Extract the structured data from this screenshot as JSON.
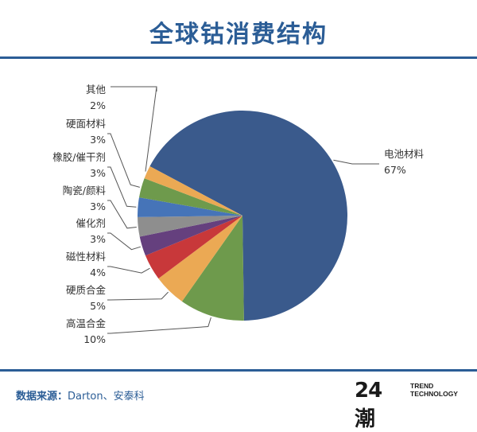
{
  "title": "全球钴消费结构",
  "source": {
    "label": "数据来源：",
    "text": "Darton、安泰科"
  },
  "logo": {
    "mark": "24潮",
    "line1": "TREND",
    "line2": "TECHNOLOGY"
  },
  "colors": {
    "accent": "#2b5d96"
  },
  "chart_data": {
    "type": "pie",
    "title": "全球钴消费结构",
    "unit": "%",
    "slices": [
      {
        "name": "电池材料",
        "value": 67,
        "label": "67%",
        "color": "#3a5a8c"
      },
      {
        "name": "高温合金",
        "value": 10,
        "label": "10%",
        "color": "#6e9a4c"
      },
      {
        "name": "硬质合金",
        "value": 5,
        "label": "5%",
        "color": "#eba954"
      },
      {
        "name": "磁性材料",
        "value": 4,
        "label": "4%",
        "color": "#c8383a"
      },
      {
        "name": "催化剂",
        "value": 3,
        "label": "3%",
        "color": "#65407e"
      },
      {
        "name": "陶瓷/颜料",
        "value": 3,
        "label": "3%",
        "color": "#8e8e8e"
      },
      {
        "name": "橡胶/催干剂",
        "value": 3,
        "label": "3%",
        "color": "#4674b8"
      },
      {
        "name": "硬面材料",
        "value": 3,
        "label": "3%",
        "color": "#6e9a4c"
      },
      {
        "name": "其他",
        "value": 2,
        "label": "2%",
        "color": "#eba954"
      }
    ]
  }
}
